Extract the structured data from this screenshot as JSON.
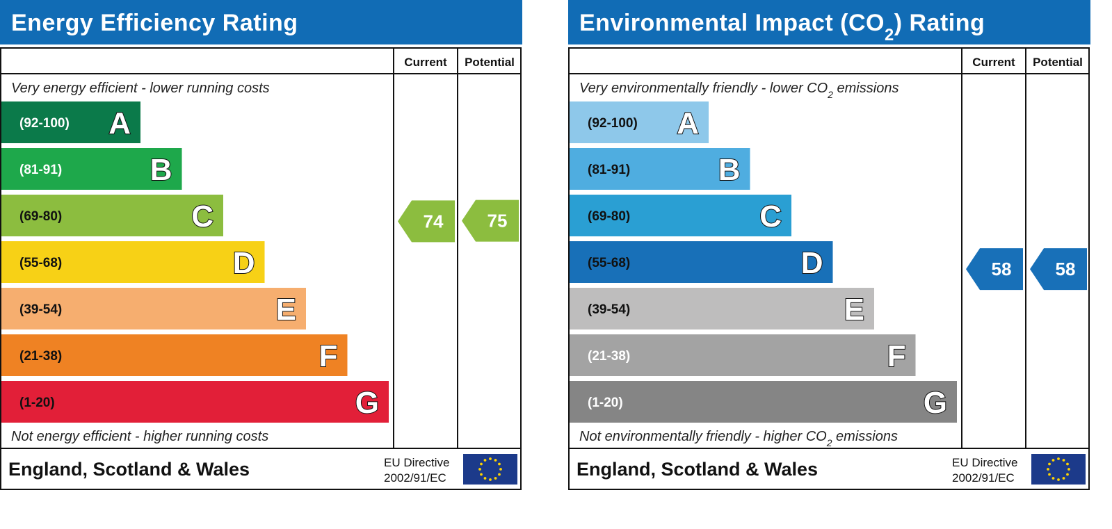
{
  "charts": [
    {
      "title": "Energy Efficiency Rating",
      "header_current": "Current",
      "header_potential": "Potential",
      "top_caption": "Very energy efficient - lower running costs",
      "bottom_caption": "Not energy efficient - higher running costs",
      "footer": "England, Scotland & Wales",
      "directive_line1": "EU Directive",
      "directive_line2": "2002/91/EC"
    },
    {
      "title": "Environmental Impact (CO₂) Rating",
      "header_current": "Current",
      "header_potential": "Potential",
      "top_caption": "Very environmentally friendly - lower CO₂ emissions",
      "bottom_caption": "Not environmentally friendly - higher CO₂ emissions",
      "footer": "England, Scotland & Wales",
      "directive_line1": "EU Directive",
      "directive_line2": "2002/91/EC"
    }
  ],
  "chart_data": [
    {
      "type": "bar",
      "title": "Energy Efficiency Rating",
      "categories": [
        "(92-100)",
        "(81-91)",
        "(69-80)",
        "(55-68)",
        "(39-54)",
        "(21-38)",
        "(1-20)"
      ],
      "letters": [
        "A",
        "B",
        "C",
        "D",
        "E",
        "F",
        "G"
      ],
      "colors": [
        "#0b7a4a",
        "#1ea84b",
        "#8cbd3f",
        "#f7d116",
        "#f6ae6f",
        "#ef8223",
        "#e21f38"
      ],
      "range_text_colors": [
        "#ffffff",
        "#ffffff",
        "#111111",
        "#111111",
        "#111111",
        "#111111",
        "#111111"
      ],
      "current": {
        "value": 74,
        "band": "C",
        "color": "#8cbd3f"
      },
      "potential": {
        "value": 75,
        "band": "C",
        "color": "#8cbd3f"
      }
    },
    {
      "type": "bar",
      "title": "Environmental Impact (CO₂) Rating",
      "categories": [
        "(92-100)",
        "(81-91)",
        "(69-80)",
        "(55-68)",
        "(39-54)",
        "(21-38)",
        "(1-20)"
      ],
      "letters": [
        "A",
        "B",
        "C",
        "D",
        "E",
        "F",
        "G"
      ],
      "colors": [
        "#8ec8ea",
        "#4fade0",
        "#2a9fd3",
        "#1870b8",
        "#bebdbd",
        "#a3a3a3",
        "#858585"
      ],
      "range_text_colors": [
        "#111111",
        "#111111",
        "#111111",
        "#111111",
        "#111111",
        "#ffffff",
        "#ffffff"
      ],
      "current": {
        "value": 58,
        "band": "D",
        "color": "#1870b8"
      },
      "potential": {
        "value": 58,
        "band": "D",
        "color": "#1870b8"
      }
    }
  ]
}
